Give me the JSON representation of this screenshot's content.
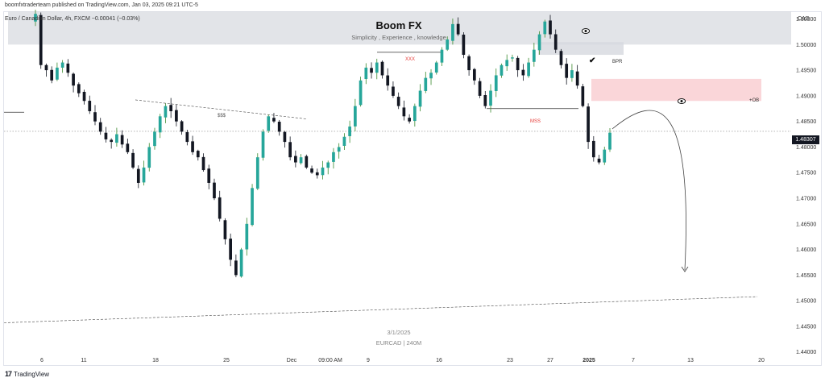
{
  "header": {
    "published_line": "boomfxtraderteam published on TradingView.com, Jan 03, 2025 09:21 UTC-5",
    "symbol_line": "Euro / Canadian Dollar, 4h, FXCM  −0.00041 (−0.03%)",
    "currency": "CAD"
  },
  "watermark": {
    "title": "Boom FX",
    "subtitle": "Simplicity , Experience , knowledge",
    "date": "3/1/2025",
    "symbol": "EURCAD | 240M"
  },
  "footer": {
    "brand": "TradingView"
  },
  "annotations": {
    "xxx": "XXX",
    "sss": "$$$",
    "mss": "MSS",
    "bpr": "BPR",
    "ob": "+OB"
  },
  "colors": {
    "up": "#26a69a",
    "up_wick": "#3a8a2e",
    "down": "#131722",
    "zone_grey": "#d6d8de",
    "zone_pink": "#f8c8cc",
    "accent_red": "#e53935"
  },
  "icons": [
    "eye-icon",
    "check-icon",
    "tradingview-logo-icon"
  ],
  "chart_data": {
    "type": "candlestick",
    "current_price": "1.48307",
    "ylim": [
      1.4398,
      1.5065
    ],
    "y_ticks": [
      "1.50500",
      "1.50000",
      "1.49500",
      "1.49000",
      "1.48500",
      "1.48000",
      "1.47500",
      "1.47000",
      "1.46500",
      "1.46000",
      "1.45500",
      "1.45000",
      "1.44500",
      "1.44000"
    ],
    "x_ticks": [
      "6",
      "11",
      "18",
      "25",
      "Dec",
      "09:00 AM",
      "9",
      "16",
      "23",
      "27",
      "2025",
      "7",
      "13",
      "20"
    ],
    "close_path": [
      1.506,
      1.496,
      1.495,
      1.493,
      1.4955,
      1.4965,
      1.4945,
      1.492,
      1.4905,
      1.489,
      1.487,
      1.485,
      1.483,
      1.4815,
      1.481,
      1.4825,
      1.4805,
      1.479,
      1.476,
      1.473,
      1.476,
      1.48,
      1.483,
      1.486,
      1.488,
      1.487,
      1.485,
      1.483,
      1.481,
      1.479,
      1.478,
      1.4755,
      1.473,
      1.47,
      1.466,
      1.462,
      1.458,
      1.455,
      1.46,
      1.465,
      1.472,
      1.478,
      1.483,
      1.486,
      1.485,
      1.483,
      1.481,
      1.478,
      1.477,
      1.478,
      1.476,
      1.475,
      1.4745,
      1.476,
      1.477,
      1.479,
      1.48,
      1.482,
      1.484,
      1.488,
      1.493,
      1.4955,
      1.4945,
      1.4965,
      1.494,
      1.492,
      1.49,
      1.488,
      1.486,
      1.485,
      1.488,
      1.491,
      1.4935,
      1.4945,
      1.4965,
      1.499,
      1.501,
      1.504,
      1.502,
      1.498,
      1.495,
      1.493,
      1.49,
      1.488,
      1.491,
      1.494,
      1.496,
      1.497,
      1.4975,
      1.495,
      1.494,
      1.4965,
      1.499,
      1.502,
      1.5045,
      1.502,
      1.499,
      1.496,
      1.4935,
      1.495,
      1.492,
      1.488,
      1.481,
      1.478,
      1.477,
      1.4795,
      1.4828
    ],
    "zones": [
      {
        "label": "Boom FX",
        "top": 1.5065,
        "bottom": 1.5
      },
      {
        "label": "BPR",
        "top": 1.5005,
        "bottom": 1.498
      },
      {
        "label": "+OB",
        "top": 1.4933,
        "bottom": 1.489
      }
    ],
    "levels": [
      {
        "label": "XXX",
        "price": 1.4985
      },
      {
        "label": "MSS",
        "price": 1.4875
      }
    ]
  }
}
